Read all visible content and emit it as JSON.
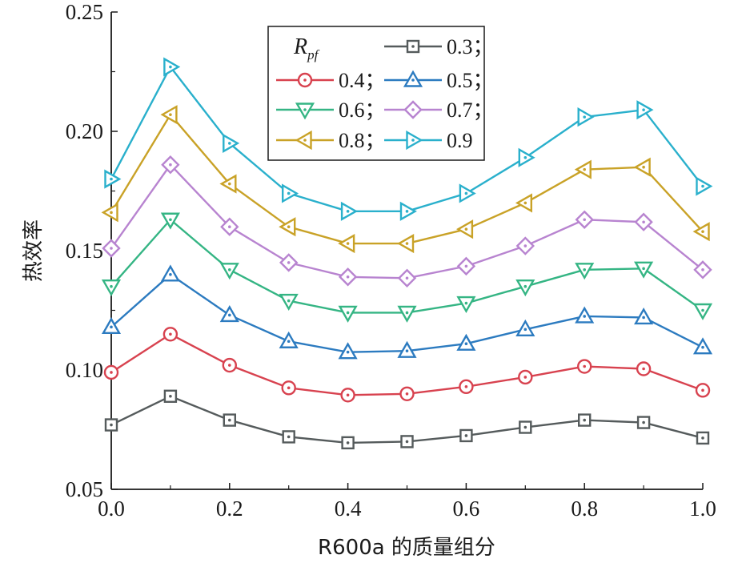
{
  "chart_data": {
    "type": "line",
    "xlabel": "R600a 的质量组分",
    "ylabel": "热效率",
    "xlim": [
      0.0,
      1.0
    ],
    "ylim": [
      0.05,
      0.25
    ],
    "x_ticks": [
      "0.0",
      "0.2",
      "0.4",
      "0.6",
      "0.8",
      "1.0"
    ],
    "y_ticks": [
      "0.05",
      "0.10",
      "0.15",
      "0.20",
      "0.25"
    ],
    "grid": false,
    "legend": {
      "placement": "top-center",
      "title_main": "R",
      "title_sub": "pf",
      "separator": "；"
    },
    "x": [
      0.0,
      0.1,
      0.2,
      0.3,
      0.4,
      0.5,
      0.6,
      0.7,
      0.8,
      0.9,
      1.0
    ],
    "series": [
      {
        "name": "0.3",
        "marker": "square",
        "color": "#555b5c",
        "values": [
          0.077,
          0.089,
          0.079,
          0.072,
          0.0695,
          0.07,
          0.0725,
          0.076,
          0.079,
          0.078,
          0.0715
        ]
      },
      {
        "name": "0.4",
        "marker": "circle",
        "color": "#d8424f",
        "values": [
          0.099,
          0.115,
          0.102,
          0.0925,
          0.0895,
          0.09,
          0.093,
          0.097,
          0.1015,
          0.1005,
          0.0915
        ]
      },
      {
        "name": "0.5",
        "marker": "triangle-up",
        "color": "#2c7bc0",
        "values": [
          0.118,
          0.14,
          0.123,
          0.112,
          0.1075,
          0.108,
          0.111,
          0.117,
          0.1225,
          0.122,
          0.1095
        ]
      },
      {
        "name": "0.6",
        "marker": "triangle-down",
        "color": "#35b584",
        "values": [
          0.135,
          0.163,
          0.142,
          0.129,
          0.124,
          0.124,
          0.128,
          0.135,
          0.142,
          0.1425,
          0.125
        ]
      },
      {
        "name": "0.7",
        "marker": "diamond",
        "color": "#b884d0",
        "values": [
          0.151,
          0.186,
          0.16,
          0.145,
          0.139,
          0.1385,
          0.1435,
          0.152,
          0.163,
          0.162,
          0.142
        ]
      },
      {
        "name": "0.8",
        "marker": "triangle-left",
        "color": "#c9a227",
        "values": [
          0.166,
          0.207,
          0.178,
          0.16,
          0.153,
          0.153,
          0.159,
          0.17,
          0.184,
          0.185,
          0.158
        ]
      },
      {
        "name": "0.9",
        "marker": "triangle-right",
        "color": "#2ab0cc",
        "values": [
          0.18,
          0.227,
          0.195,
          0.174,
          0.1665,
          0.1665,
          0.174,
          0.189,
          0.206,
          0.209,
          0.177
        ]
      }
    ]
  }
}
